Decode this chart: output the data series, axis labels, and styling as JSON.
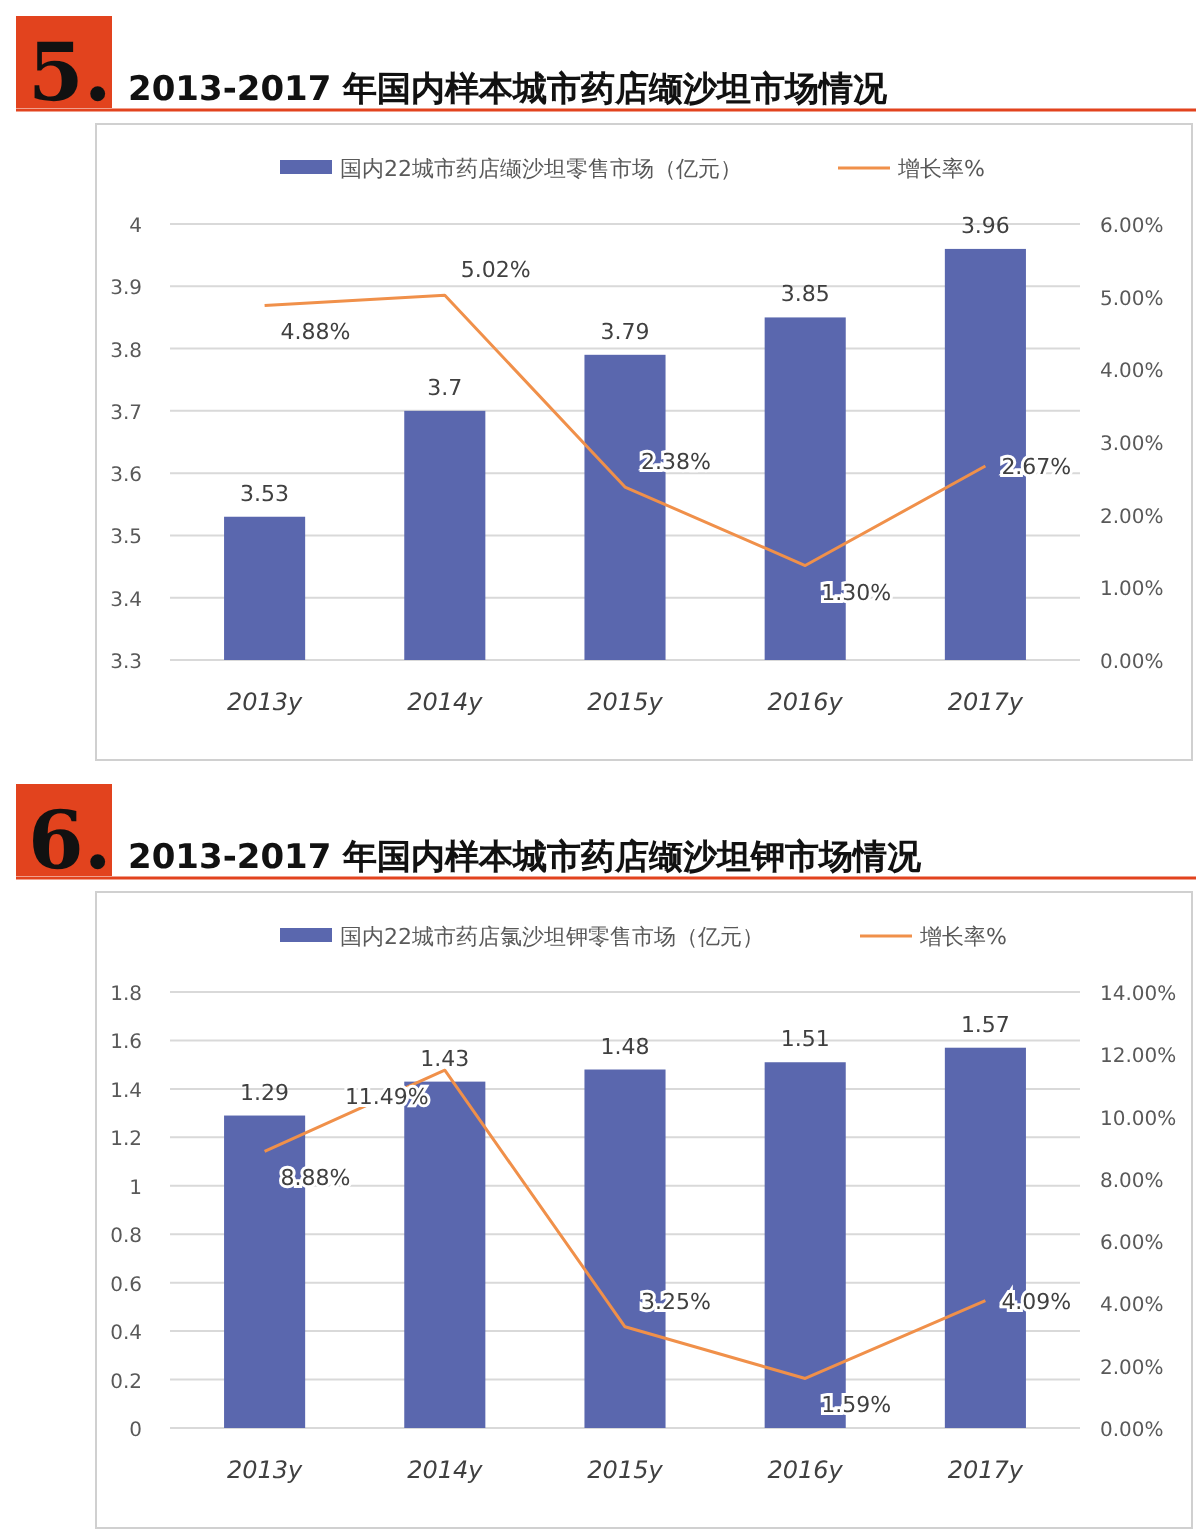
{
  "chart_data": [
    {
      "type": "bar",
      "title": "2013-2017 年国内样本城市药店缬沙坦市场情况",
      "annotations": [
        "5."
      ],
      "categories": [
        "2013y",
        "2014y",
        "2015y",
        "2016y",
        "2017y"
      ],
      "legend": "top",
      "grid": "y",
      "ylim": [
        3.3,
        4
      ],
      "yticks": [
        3.3,
        3.4,
        3.5,
        3.6,
        3.7,
        3.8,
        3.9,
        4
      ],
      "y2lim": [
        0,
        6
      ],
      "y2ticks": [
        {
          "value": 0,
          "label": "0.00%"
        },
        {
          "value": 1,
          "label": "1.00%"
        },
        {
          "value": 2,
          "label": "2.00%"
        },
        {
          "value": 3,
          "label": "3.00%"
        },
        {
          "value": 4,
          "label": "4.00%"
        },
        {
          "value": 5,
          "label": "5.00%"
        },
        {
          "value": 6,
          "label": "6.00%"
        }
      ],
      "series": [
        {
          "type": "bar",
          "name": "国内22城市药店缬沙坦零售市场（亿元）",
          "color": "#5a67ae",
          "values": [
            3.53,
            3.7,
            3.79,
            3.85,
            3.96
          ],
          "value_labels": [
            "3.53",
            "3.7",
            "3.79",
            "3.85",
            "3.96"
          ]
        },
        {
          "type": "line",
          "axis": "y2",
          "name": "增长率%",
          "color": "#f0904a",
          "values": [
            4.88,
            5.02,
            2.38,
            1.3,
            2.67
          ],
          "value_labels": [
            "4.88%",
            "5.02%",
            "2.38%",
            "1.30%",
            "2.67%"
          ]
        }
      ]
    },
    {
      "type": "bar",
      "title": "2013-2017 年国内样本城市药店缬沙坦钾市场情况",
      "annotations": [
        "6."
      ],
      "categories": [
        "2013y",
        "2014y",
        "2015y",
        "2016y",
        "2017y"
      ],
      "legend": "top",
      "grid": "y",
      "ylim": [
        0,
        1.8
      ],
      "yticks": [
        0,
        0.2,
        0.4,
        0.6,
        0.8,
        1,
        1.2,
        1.4,
        1.6,
        1.8
      ],
      "y2lim": [
        0,
        14
      ],
      "y2ticks": [
        {
          "value": 0,
          "label": "0.00%"
        },
        {
          "value": 2,
          "label": "2.00%"
        },
        {
          "value": 4,
          "label": "4.00%"
        },
        {
          "value": 6,
          "label": "6.00%"
        },
        {
          "value": 8,
          "label": "8.00%"
        },
        {
          "value": 10,
          "label": "10.00%"
        },
        {
          "value": 12,
          "label": "12.00%"
        },
        {
          "value": 14,
          "label": "14.00%"
        }
      ],
      "series": [
        {
          "type": "bar",
          "name": "国内22城市药店氯沙坦钾零售市场（亿元）",
          "color": "#5a67ae",
          "values": [
            1.29,
            1.43,
            1.48,
            1.51,
            1.57
          ],
          "value_labels": [
            "1.29",
            "1.43",
            "1.48",
            "1.51",
            "1.57"
          ]
        },
        {
          "type": "line",
          "axis": "y2",
          "name": "增长率%",
          "color": "#f0904a",
          "values": [
            8.88,
            11.49,
            3.25,
            1.59,
            4.09
          ],
          "value_labels": [
            "8.88%",
            "11.49%",
            "3.25%",
            "1.59%",
            "4.09%"
          ]
        }
      ]
    }
  ]
}
